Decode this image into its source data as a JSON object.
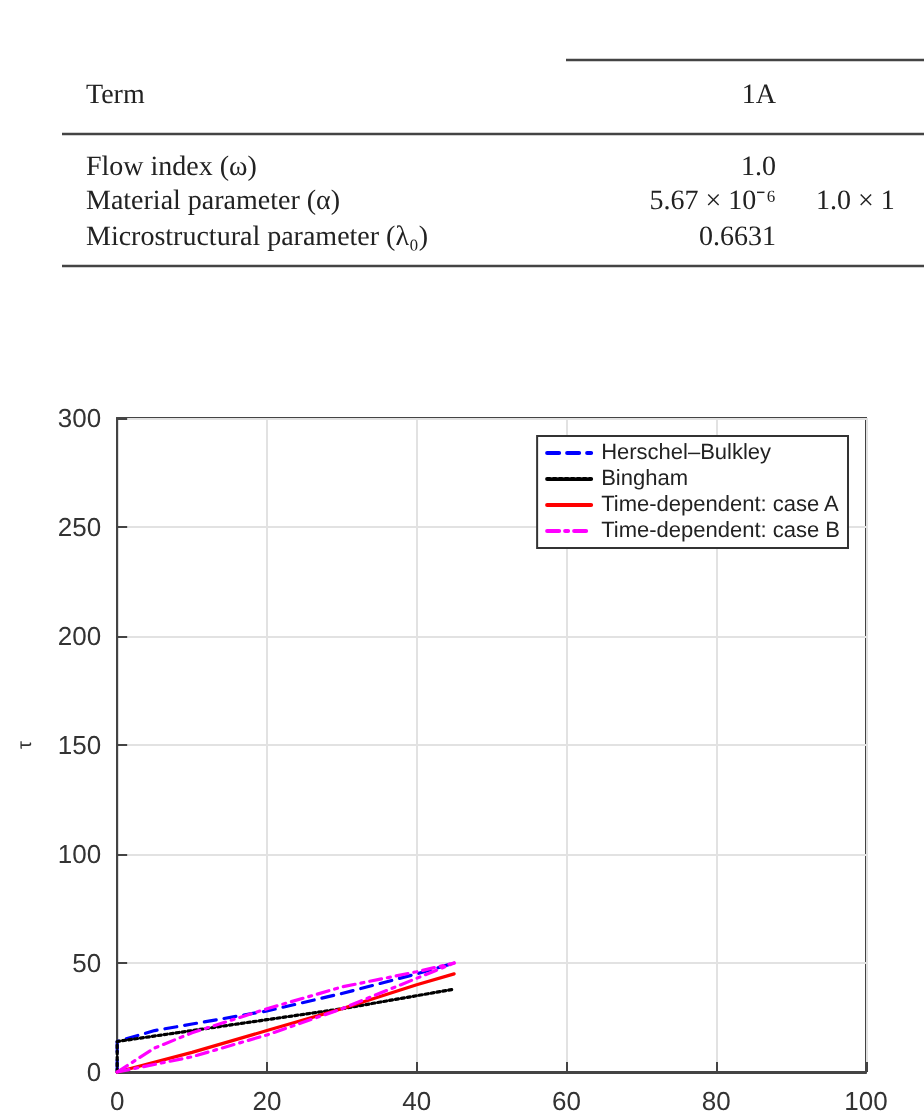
{
  "chart_data": {
    "type": "line",
    "ylabel": "τ",
    "xlim": [
      0,
      100
    ],
    "ylim": [
      0,
      300
    ],
    "xticks": [
      0,
      20,
      40,
      60,
      80,
      100
    ],
    "yticks": [
      0,
      50,
      100,
      150,
      200,
      250,
      300
    ],
    "grid": true,
    "legend": "top right",
    "marker": "none",
    "annotations": [
      "Term",
      "1A",
      "Flow index (ω)",
      "1.0",
      "Material parameter (α)",
      "5.67 × 10⁻⁶",
      "1.0 × 1",
      "Microstructural parameter (λ₀)",
      "0.6631"
    ],
    "series": [
      {
        "name": "Herschel–Bulkley",
        "color": "#0000ff",
        "line_style": "dashed",
        "x": [
          0,
          0,
          5,
          10,
          20,
          30,
          40,
          45
        ],
        "values": [
          0,
          14,
          19,
          22,
          28,
          36,
          45,
          50
        ]
      },
      {
        "name": "Bingham",
        "color": "#000000",
        "line_style": "dotted",
        "x": [
          0,
          0,
          10,
          20,
          30,
          40,
          45
        ],
        "values": [
          0,
          14,
          19,
          24,
          29,
          35,
          38
        ]
      },
      {
        "name": "Time-dependent: case A",
        "color": "#ff0000",
        "line_style": "solid",
        "x": [
          0,
          10,
          20,
          30,
          40,
          45
        ],
        "values": [
          0,
          9,
          19,
          29,
          40,
          45
        ]
      },
      {
        "name": "Time-dependent: case B",
        "color": "#ff00ff",
        "line_style": "dashdot",
        "x": [
          0,
          10,
          20,
          30,
          40,
          45
        ],
        "values": [
          0,
          7,
          17,
          29,
          43,
          50
        ]
      },
      {
        "color": "#ff00ff",
        "line_style": "dashdot",
        "x": [
          0,
          5,
          10,
          20,
          30,
          40,
          45
        ],
        "values": [
          0,
          11,
          18,
          29,
          39,
          46,
          50
        ]
      }
    ]
  }
}
